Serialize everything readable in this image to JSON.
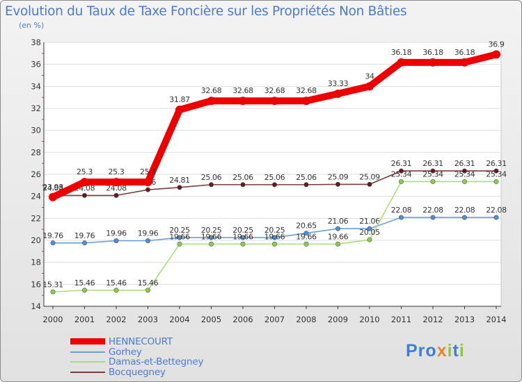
{
  "title": "Evolution du Taux de Taxe Foncière sur les Propriétés Non Bâties",
  "unit": "(en %)",
  "logo": "Proxiti",
  "chart_data": {
    "type": "line",
    "title": "Evolution du Taux de Taxe Foncière sur les Propriétés Non Bâties",
    "ylabel": "(en %)",
    "xlabel": "",
    "ylim": [
      14,
      38
    ],
    "yticks": [
      "14",
      "16",
      "18",
      "20",
      "22",
      "24",
      "26",
      "28",
      "30",
      "32",
      "34",
      "36",
      "38"
    ],
    "x": [
      "2000",
      "2001",
      "2002",
      "2003",
      "2004",
      "2005",
      "2006",
      "2007",
      "2008",
      "2009",
      "2010",
      "2011",
      "2012",
      "2013",
      "2014"
    ],
    "series": [
      {
        "name": "Gorhey",
        "color": "#6b9fd8",
        "dot": "#4f8fd6",
        "values": [
          19.76,
          19.76,
          19.96,
          19.96,
          20.25,
          20.25,
          20.25,
          20.25,
          20.65,
          21.06,
          21.06,
          22.08,
          22.08,
          22.08,
          22.08
        ],
        "labels": [
          "19.76",
          "19.76",
          "19.96",
          "19.96",
          "20.25",
          "20.25",
          "20.25",
          "20.25",
          "20.65",
          "21.06",
          "21.06",
          "22.08",
          "22.08",
          "22.08",
          "22.08"
        ]
      },
      {
        "name": "Damas-et-Bettegney",
        "color": "#a9dc7a",
        "dot": "#8ccd4e",
        "values": [
          15.31,
          15.46,
          15.46,
          15.46,
          19.66,
          19.66,
          19.66,
          19.66,
          19.66,
          19.66,
          20.05,
          25.34,
          25.34,
          25.34,
          25.34
        ],
        "labels": [
          "15.31",
          "15.46",
          "15.46",
          "15.46",
          "19.66",
          "19.66",
          "19.66",
          "19.66",
          "19.66",
          "19.66",
          "20.05",
          "25.34",
          "25.34",
          "25.34",
          "25.34"
        ]
      },
      {
        "name": "Bocquegney",
        "color": "#7a3b3b",
        "dot": "#5e1c1c",
        "values": [
          24.08,
          24.08,
          24.08,
          24.6,
          24.81,
          25.06,
          25.06,
          25.06,
          25.06,
          25.09,
          25.09,
          26.31,
          26.31,
          26.31,
          26.31
        ],
        "labels": [
          "24.08",
          "24.08",
          "24.08",
          "24.6",
          "24.81",
          "25.06",
          "25.06",
          "25.06",
          "25.06",
          "25.09",
          "25.09",
          "26.31",
          "26.31",
          "26.31",
          "26.31"
        ]
      },
      {
        "name": "HENNECOURT",
        "color": "#ee0000",
        "dot": "#ee0000",
        "values": [
          23.93,
          25.3,
          25.3,
          25.3,
          31.87,
          32.68,
          32.68,
          32.68,
          32.68,
          33.33,
          34.0,
          36.18,
          36.18,
          36.18,
          36.9
        ],
        "labels": [
          "23.93",
          "25.3",
          "25.3",
          "25.3",
          "31.87",
          "32.68",
          "32.68",
          "32.68",
          "32.68",
          "33.33",
          "34",
          "36.18",
          "36.18",
          "36.18",
          "36.9"
        ]
      }
    ]
  },
  "legend": [
    {
      "name": "HENNECOURT",
      "color": "#ee0000"
    },
    {
      "name": "Gorhey",
      "color": "#6b9fd8"
    },
    {
      "name": "Damas-et-Bettegney",
      "color": "#a9dc7a"
    },
    {
      "name": "Bocquegney",
      "color": "#7a3b3b"
    }
  ]
}
